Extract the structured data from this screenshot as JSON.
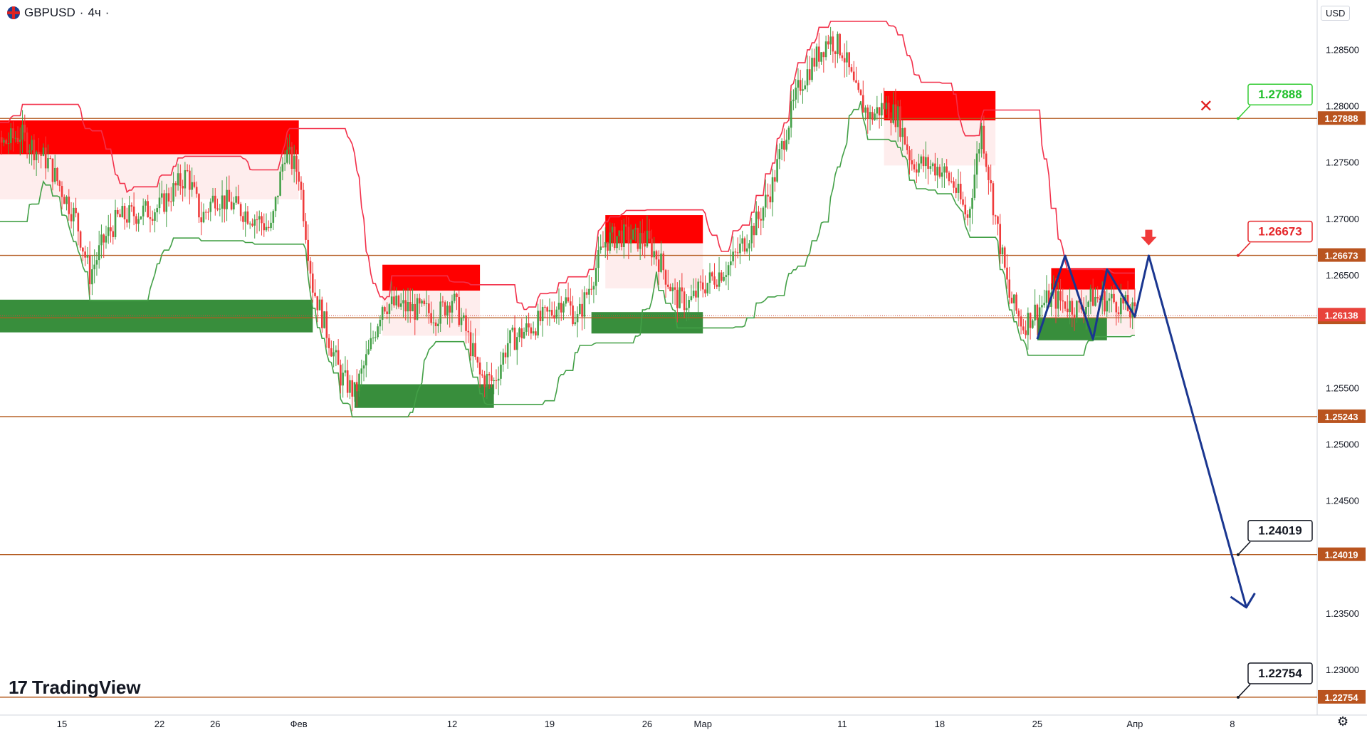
{
  "header": {
    "symbol": "GBPUSD",
    "interval": "4ч",
    "currency": "USD"
  },
  "brand": {
    "mark": "17",
    "name": "TradingView"
  },
  "icons": {
    "settings": "gear-icon",
    "flag": "uk-flag-icon",
    "invalidation": "x-mark-icon",
    "entry": "down-arrow-icon"
  },
  "colors": {
    "bull": "#43a047",
    "bear": "#ef3b3b",
    "supply": "#ff0000",
    "demand": "#388e3c",
    "level": "#b35a1f",
    "projection": "#1a3690",
    "trail_bear": "#f2304a",
    "trail_bull": "#43a047"
  },
  "chart_data": {
    "type": "candlestick",
    "title": "GBPUSD · 4ч",
    "xlabel": "",
    "ylabel": "",
    "ylim": [
      1.223,
      1.2905
    ],
    "yticks": [
      "1.28500",
      "1.28000",
      "1.27500",
      "1.27000",
      "1.26500",
      "1.25500",
      "1.25000",
      "1.24500",
      "1.23500",
      "1.23000"
    ],
    "xticks": [
      {
        "label": "15",
        "date": "2024-01-15"
      },
      {
        "label": "22",
        "date": "2024-01-22"
      },
      {
        "label": "26",
        "date": "2024-01-26"
      },
      {
        "label": "Фев",
        "date": "2024-02-01"
      },
      {
        "label": "12",
        "date": "2024-02-12"
      },
      {
        "label": "19",
        "date": "2024-02-19"
      },
      {
        "label": "26",
        "date": "2024-02-26"
      },
      {
        "label": "Мар",
        "date": "2024-03-01"
      },
      {
        "label": "11",
        "date": "2024-03-11"
      },
      {
        "label": "18",
        "date": "2024-03-18"
      },
      {
        "label": "25",
        "date": "2024-03-25"
      },
      {
        "label": "Апр",
        "date": "2024-04-01"
      },
      {
        "label": "8",
        "date": "2024-04-08"
      }
    ],
    "price_path": [
      [
        "2024-01-08",
        1.2715
      ],
      [
        "2024-01-10",
        1.276
      ],
      [
        "2024-01-12",
        1.2775
      ],
      [
        "2024-01-14",
        1.275
      ],
      [
        "2024-01-16",
        1.27
      ],
      [
        "2024-01-17",
        1.265
      ],
      [
        "2024-01-18",
        1.268
      ],
      [
        "2024-01-19",
        1.27
      ],
      [
        "2024-01-22",
        1.271
      ],
      [
        "2024-01-24",
        1.274
      ],
      [
        "2024-01-25",
        1.27
      ],
      [
        "2024-01-26",
        1.272
      ],
      [
        "2024-01-29",
        1.27
      ],
      [
        "2024-01-30",
        1.269
      ],
      [
        "2024-01-31",
        1.276
      ],
      [
        "2024-02-01",
        1.274
      ],
      [
        "2024-02-02",
        1.264
      ],
      [
        "2024-02-04",
        1.256
      ],
      [
        "2024-02-05",
        1.2545
      ],
      [
        "2024-02-06",
        1.258
      ],
      [
        "2024-02-07",
        1.2625
      ],
      [
        "2024-02-09",
        1.262
      ],
      [
        "2024-02-11",
        1.2615
      ],
      [
        "2024-02-12",
        1.263
      ],
      [
        "2024-02-13",
        1.26
      ],
      [
        "2024-02-14",
        1.256
      ],
      [
        "2024-02-15",
        1.2555
      ],
      [
        "2024-02-16",
        1.259
      ],
      [
        "2024-02-19",
        1.2615
      ],
      [
        "2024-02-20",
        1.263
      ],
      [
        "2024-02-21",
        1.261
      ],
      [
        "2024-02-22",
        1.2645
      ],
      [
        "2024-02-23",
        1.268
      ],
      [
        "2024-02-24",
        1.2685
      ],
      [
        "2024-02-26",
        1.268
      ],
      [
        "2024-02-27",
        1.266
      ],
      [
        "2024-02-28",
        1.263
      ],
      [
        "2024-02-29",
        1.2625
      ],
      [
        "2024-03-01",
        1.264
      ],
      [
        "2024-03-03",
        1.266
      ],
      [
        "2024-03-05",
        1.27
      ],
      [
        "2024-03-06",
        1.273
      ],
      [
        "2024-03-07",
        1.278
      ],
      [
        "2024-03-08",
        1.282
      ],
      [
        "2024-03-10",
        1.286
      ],
      [
        "2024-03-11",
        1.285
      ],
      [
        "2024-03-12",
        1.281
      ],
      [
        "2024-03-13",
        1.279
      ],
      [
        "2024-03-14",
        1.28
      ],
      [
        "2024-03-15",
        1.279
      ],
      [
        "2024-03-16",
        1.275
      ],
      [
        "2024-03-18",
        1.2745
      ],
      [
        "2024-03-19",
        1.273
      ],
      [
        "2024-03-20",
        1.27
      ],
      [
        "2024-03-21",
        1.278
      ],
      [
        "2024-03-22",
        1.27
      ],
      [
        "2024-03-23",
        1.263
      ],
      [
        "2024-03-24",
        1.2605
      ],
      [
        "2024-03-25",
        1.262
      ],
      [
        "2024-03-26",
        1.263
      ],
      [
        "2024-03-27",
        1.2625
      ],
      [
        "2024-03-28",
        1.262
      ],
      [
        "2024-03-29",
        1.263
      ],
      [
        "2024-03-31",
        1.2625
      ],
      [
        "2024-04-01",
        1.2614
      ]
    ],
    "levels": [
      {
        "price": 1.27888,
        "label": "1.27888"
      },
      {
        "price": 1.26673,
        "label": "1.26673"
      },
      {
        "price": 1.2612,
        "label": "1.26120"
      },
      {
        "price": 1.25243,
        "label": "1.25243"
      },
      {
        "price": 1.24019,
        "label": "1.24019"
      },
      {
        "price": 1.22754,
        "label": "1.22754"
      }
    ],
    "current_price": {
      "price": 1.26138,
      "label": "1.26138"
    },
    "callouts": [
      {
        "price": 1.27888,
        "label": "1.27888",
        "style": "green"
      },
      {
        "price": 1.26673,
        "label": "1.26673",
        "style": "red"
      },
      {
        "price": 1.24019,
        "label": "1.24019",
        "style": "black"
      },
      {
        "price": 1.22754,
        "label": "1.22754",
        "style": "black"
      }
    ],
    "supply_zones": [
      {
        "from": "2024-01-08",
        "to": "2024-02-01",
        "top": 1.2787,
        "bottom": 1.2757
      },
      {
        "from": "2024-02-07",
        "to": "2024-02-14",
        "top": 1.2659,
        "bottom": 1.2636
      },
      {
        "from": "2024-02-23",
        "to": "2024-03-01",
        "top": 1.2703,
        "bottom": 1.2678
      },
      {
        "from": "2024-03-14",
        "to": "2024-03-22",
        "top": 1.2813,
        "bottom": 1.2787
      },
      {
        "from": "2024-03-26",
        "to": "2024-04-01",
        "top": 1.2656,
        "bottom": 1.2637
      }
    ],
    "demand_zones": [
      {
        "from": "2024-01-08",
        "to": "2024-02-02",
        "top": 1.2628,
        "bottom": 1.2599
      },
      {
        "from": "2024-02-05",
        "to": "2024-02-15",
        "top": 1.2553,
        "bottom": 1.2532
      },
      {
        "from": "2024-02-22",
        "to": "2024-03-01",
        "top": 1.2617,
        "bottom": 1.2598
      },
      {
        "from": "2024-03-25",
        "to": "2024-03-30",
        "top": 1.2612,
        "bottom": 1.2592
      }
    ],
    "projection": [
      [
        "2024-03-25",
        1.2593
      ],
      [
        "2024-03-27",
        1.2667
      ],
      [
        "2024-03-29",
        1.2593
      ],
      [
        "2024-03-30",
        1.2655
      ],
      [
        "2024-04-01",
        1.2613
      ],
      [
        "2024-04-02",
        1.2667
      ],
      [
        "2024-04-09",
        1.2355
      ]
    ]
  }
}
